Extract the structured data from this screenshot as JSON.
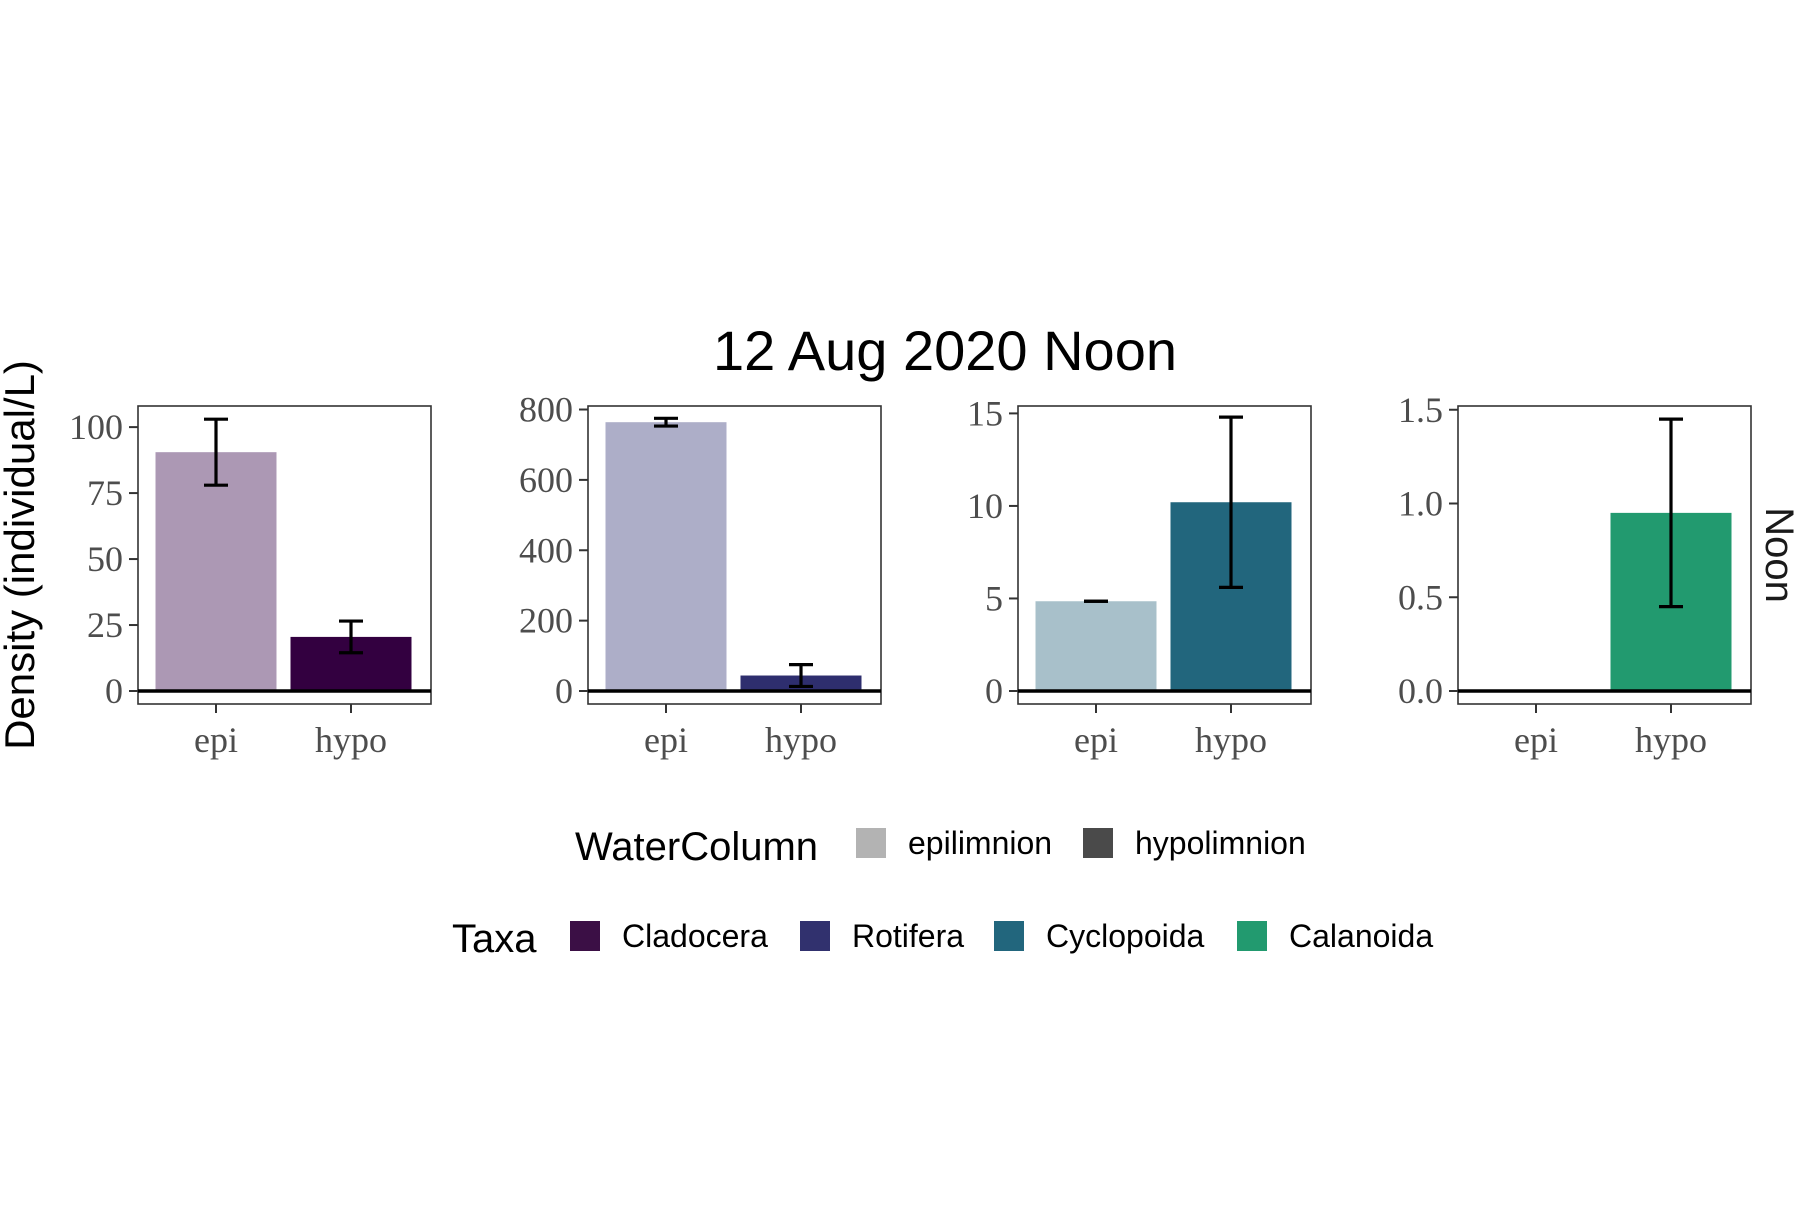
{
  "chart_data": {
    "type": "bar",
    "title": "12 Aug 2020 Noon",
    "ylabel": "Density (individual/L)",
    "strip_label": "Noon",
    "categories": [
      "epi",
      "hypo"
    ],
    "facet_layout": "1x4, free y scales",
    "panels": [
      {
        "taxa": "Cladocera",
        "ylim": [
          0,
          108
        ],
        "yticks": [
          0,
          25,
          50,
          75,
          100
        ],
        "ytick_labels": [
          "0",
          "25",
          "50",
          "75",
          "100"
        ],
        "bars": [
          {
            "category": "epi",
            "value": 90.5,
            "err_low": 78,
            "err_high": 103,
            "water_column": "epilimnion"
          },
          {
            "category": "hypo",
            "value": 20.5,
            "err_low": 14.5,
            "err_high": 26.5,
            "water_column": "hypolimnion"
          }
        ]
      },
      {
        "taxa": "Rotifera",
        "ylim": [
          0,
          810
        ],
        "yticks": [
          0,
          200,
          400,
          600,
          800
        ],
        "ytick_labels": [
          "0",
          "200",
          "400",
          "600",
          "800"
        ],
        "bars": [
          {
            "category": "epi",
            "value": 764,
            "err_low": 753,
            "err_high": 775,
            "water_column": "epilimnion"
          },
          {
            "category": "hypo",
            "value": 44,
            "err_low": 13,
            "err_high": 75,
            "water_column": "hypolimnion"
          }
        ]
      },
      {
        "taxa": "Cyclopoida",
        "ylim": [
          0,
          15.4
        ],
        "yticks": [
          0,
          5,
          10,
          15
        ],
        "ytick_labels": [
          "0",
          "5",
          "10",
          "15"
        ],
        "bars": [
          {
            "category": "epi",
            "value": 4.85,
            "err_low": 4.85,
            "err_high": 4.85,
            "water_column": "epilimnion"
          },
          {
            "category": "hypo",
            "value": 10.2,
            "err_low": 5.6,
            "err_high": 14.8,
            "water_column": "hypolimnion"
          }
        ]
      },
      {
        "taxa": "Calanoida",
        "ylim": [
          0,
          1.52
        ],
        "yticks": [
          0,
          0.5,
          1.0,
          1.5
        ],
        "ytick_labels": [
          "0.0",
          "0.5",
          "1.0",
          "1.5"
        ],
        "bars": [
          {
            "category": "epi",
            "value": 0,
            "err_low": 0,
            "err_high": 0,
            "water_column": "epilimnion"
          },
          {
            "category": "hypo",
            "value": 0.95,
            "err_low": 0.45,
            "err_high": 1.45,
            "water_column": "hypolimnion"
          }
        ]
      }
    ],
    "legend_watercolumn": {
      "title": "WaterColumn",
      "entries": [
        {
          "label": "epilimnion",
          "color": "#b3b3b3"
        },
        {
          "label": "hypolimnion",
          "color": "#4a4a4a"
        }
      ]
    },
    "legend_taxa": {
      "title": "Taxa",
      "entries": [
        {
          "label": "Cladocera",
          "color": "#3b0f45"
        },
        {
          "label": "Rotifera",
          "color": "#31316e"
        },
        {
          "label": "Cyclopoida",
          "color": "#22667d"
        },
        {
          "label": "Calanoida",
          "color": "#229a6f"
        }
      ]
    },
    "legend_placement": "bottom",
    "grid": false,
    "colors": {
      "epi_light": [
        "#ac98b4",
        "#adaec8",
        "#a8c0ca",
        "#a8d4c4"
      ],
      "hypo_dark": [
        "#330040",
        "#2e2e6e",
        "#22667d",
        "#229a6f"
      ]
    }
  }
}
